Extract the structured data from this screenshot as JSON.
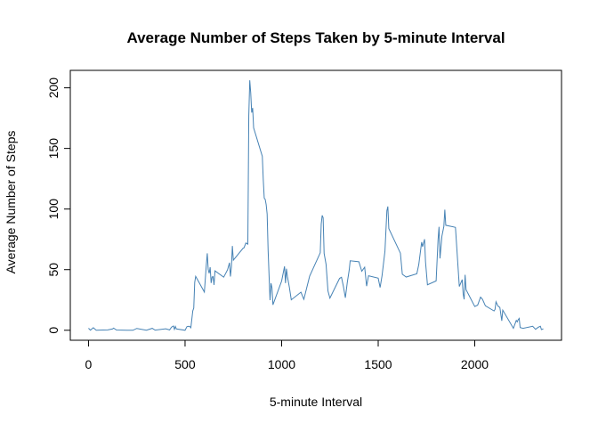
{
  "chart_data": {
    "type": "line",
    "title": "Average Number of Steps Taken by 5-minute Interval",
    "x_label": "5-minute Interval",
    "y_label": "Average Number of Steps",
    "color": "#4682b4",
    "x": [
      0,
      10,
      25,
      40,
      55,
      100,
      125,
      130,
      145,
      200,
      230,
      250,
      300,
      330,
      345,
      400,
      420,
      430,
      440,
      445,
      450,
      455,
      500,
      510,
      520,
      525,
      530,
      540,
      545,
      550,
      555,
      600,
      610,
      615,
      620,
      625,
      630,
      635,
      640,
      645,
      650,
      655,
      700,
      720,
      730,
      735,
      740,
      745,
      750,
      800,
      805,
      815,
      825,
      830,
      835,
      840,
      845,
      850,
      855,
      900,
      905,
      910,
      915,
      920,
      925,
      930,
      935,
      940,
      945,
      950,
      955,
      1000,
      1015,
      1020,
      1025,
      1030,
      1040,
      1050,
      1100,
      1115,
      1145,
      1200,
      1205,
      1210,
      1215,
      1220,
      1230,
      1240,
      1250,
      1300,
      1310,
      1320,
      1330,
      1340,
      1350,
      1355,
      1400,
      1415,
      1430,
      1440,
      1450,
      1500,
      1510,
      1520,
      1535,
      1545,
      1550,
      1555,
      1615,
      1625,
      1645,
      1700,
      1710,
      1725,
      1730,
      1740,
      1745,
      1755,
      1800,
      1810,
      1815,
      1820,
      1830,
      1840,
      1845,
      1850,
      1900,
      1920,
      1935,
      1940,
      1945,
      1950,
      1955,
      2000,
      2015,
      2030,
      2040,
      2055,
      2100,
      2105,
      2110,
      2120,
      2130,
      2140,
      2145,
      2200,
      2215,
      2220,
      2225,
      2230,
      2235,
      2250,
      2300,
      2315,
      2330,
      2340,
      2345,
      2355
    ],
    "values": [
      1.7,
      0.1,
      2.1,
      0,
      0.1,
      0.3,
      1.1,
      1.8,
      0.2,
      0,
      0,
      1.5,
      0,
      1.6,
      0.1,
      1.2,
      0.3,
      2.6,
      3.5,
      0.8,
      3.1,
      1.1,
      0,
      3,
      3.3,
      3,
      2.1,
      16,
      18.3,
      39.5,
      44.5,
      31.5,
      53.8,
      63.5,
      50,
      47,
      52,
      39,
      44,
      44.2,
      37.4,
      49,
      43.8,
      49.9,
      55.7,
      44.3,
      52.3,
      69.5,
      57.8,
      67.6,
      68,
      72,
      71,
      177,
      206.2,
      195.9,
      179.6,
      183.4,
      167,
      143.5,
      124,
      109,
      108,
      103.7,
      95.9,
      66.2,
      45.2,
      24.8,
      38.8,
      35,
      21,
      40.6,
      52.7,
      38.9,
      50.8,
      44.3,
      35.5,
      25.1,
      31.4,
      25.5,
      44.6,
      63.9,
      87.6,
      94.8,
      92.8,
      63.4,
      54.5,
      32.4,
      26.5,
      42.8,
      43.7,
      36,
      26.8,
      39.5,
      49.8,
      57.3,
      56.5,
      48.7,
      52,
      36.4,
      44.9,
      43,
      35.3,
      45.1,
      65.3,
      98.6,
      102.1,
      83.9,
      63.6,
      46.2,
      43.9,
      46.6,
      54.1,
      72.7,
      68.9,
      75.1,
      56.5,
      37.5,
      40.7,
      74.7,
      85.3,
      59.3,
      77.7,
      85.6,
      99.5,
      86.6,
      84.9,
      36.1,
      41.8,
      30,
      25.5,
      45.7,
      33.5,
      19.6,
      20.7,
      27.3,
      25.5,
      20.2,
      15.9,
      17.2,
      23.5,
      20,
      18.8,
      7.8,
      16.6,
      1.6,
      8.1,
      6.9,
      8.7,
      9.8,
      2.2,
      1.6,
      3.3,
      0.8,
      2.6,
      3.3,
      0.6,
      1.1
    ],
    "xlim": [
      -94.2,
      2449.2
    ],
    "ylim": [
      -8.25,
      214.4
    ],
    "xticks": [
      0,
      500,
      1000,
      1500,
      2000
    ],
    "yticks": [
      0,
      50,
      100,
      150,
      200
    ]
  }
}
